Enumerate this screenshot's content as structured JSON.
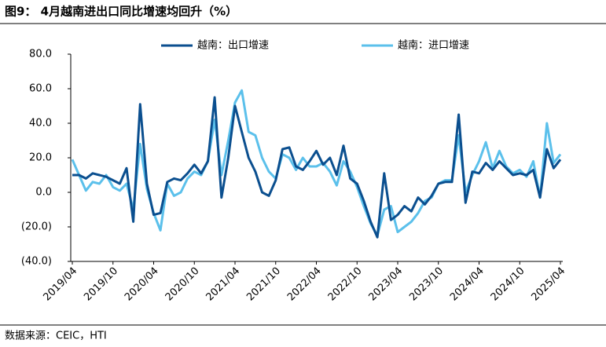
{
  "chart_data": {
    "type": "line",
    "title": "图9： 4月越南进出口同比增速均回升（%）",
    "source": "数据来源：CEIC，HTI",
    "categories": [
      "2019/04",
      null,
      null,
      null,
      null,
      null,
      "2019/10",
      null,
      null,
      null,
      null,
      null,
      "2020/04",
      null,
      null,
      null,
      null,
      null,
      "2020/10",
      null,
      null,
      null,
      null,
      null,
      "2021/04",
      null,
      null,
      null,
      null,
      null,
      "2021/10",
      null,
      null,
      null,
      null,
      null,
      "2022/04",
      null,
      null,
      null,
      null,
      null,
      "2022/10",
      null,
      null,
      null,
      null,
      null,
      "2023/04",
      null,
      null,
      null,
      null,
      null,
      "2023/10",
      null,
      null,
      null,
      null,
      null,
      "2024/04",
      null,
      null,
      null,
      null,
      null,
      "2024/10",
      null,
      null,
      null,
      null,
      null,
      "2025/04"
    ],
    "series": [
      {
        "name": "越南：出口增速",
        "color": "#0b4f8f",
        "values": [
          10,
          10,
          8,
          11,
          10,
          9,
          7,
          5,
          14,
          -17,
          51,
          5,
          -13,
          -12,
          6,
          8,
          7,
          11,
          16,
          11,
          18,
          55,
          -3,
          20,
          50,
          35,
          20,
          12,
          0,
          -2,
          7,
          25,
          26,
          15,
          13,
          18,
          24,
          16,
          20,
          10,
          27,
          8,
          5,
          -5,
          -17,
          -26,
          11,
          -16,
          -13,
          -8,
          -11,
          -3,
          -7,
          -2,
          5,
          6,
          6,
          45,
          -6,
          12,
          11,
          17,
          13,
          18,
          14,
          10,
          11,
          10,
          13,
          -3,
          25,
          14,
          19
        ]
      },
      {
        "name": "越南：进口增速",
        "color": "#5bc0eb",
        "values": [
          19,
          10,
          1,
          6,
          5,
          10,
          3,
          1,
          5,
          -10,
          28,
          2,
          -12,
          -22,
          5,
          -2,
          0,
          8,
          12,
          10,
          18,
          42,
          10,
          30,
          52,
          59,
          35,
          33,
          20,
          12,
          8,
          22,
          20,
          13,
          20,
          15,
          15,
          17,
          12,
          4,
          18,
          12,
          3,
          -8,
          -18,
          -25,
          -10,
          -8,
          -23,
          -20,
          -17,
          -12,
          -5,
          -3,
          5,
          7,
          7,
          33,
          0,
          10,
          18,
          29,
          14,
          24,
          15,
          11,
          13,
          9,
          18,
          -3,
          40,
          17,
          22
        ]
      }
    ],
    "ylim": [
      -40,
      80
    ],
    "yticks": [
      {
        "value": -40,
        "label": "(40.0)"
      },
      {
        "value": -20,
        "label": "(20.0)"
      },
      {
        "value": 0,
        "label": "0.0"
      },
      {
        "value": 20,
        "label": "20.0"
      },
      {
        "value": 40,
        "label": "40.0"
      },
      {
        "value": 60,
        "label": "60.0"
      },
      {
        "value": 80,
        "label": "80.0"
      }
    ],
    "negative_tick_color": "#c00000",
    "grid": false,
    "legend": "top"
  }
}
